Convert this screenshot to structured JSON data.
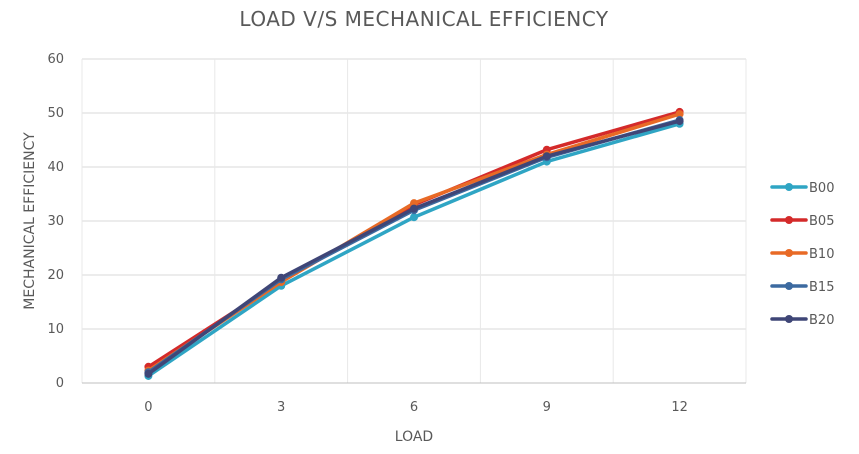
{
  "chart_data": {
    "type": "line",
    "title": "LOAD V/S MECHANICAL EFFICIENCY",
    "xlabel": "LOAD",
    "ylabel": "MECHANICAL EFFICIENCY",
    "categories": [
      "0",
      "3",
      "6",
      "9",
      "12"
    ],
    "ylim": [
      0,
      60
    ],
    "yticks": [
      0,
      10,
      20,
      30,
      40,
      50,
      60
    ],
    "grid": true,
    "legend_position": "right",
    "series": [
      {
        "name": "B00",
        "color": "#2fa5c4",
        "values": [
          1.3,
          18.0,
          30.7,
          41.0,
          48.0
        ]
      },
      {
        "name": "B05",
        "color": "#d42a2a",
        "values": [
          3.0,
          18.8,
          33.0,
          43.2,
          50.2
        ]
      },
      {
        "name": "B10",
        "color": "#e86a26",
        "values": [
          2.3,
          18.7,
          33.3,
          42.3,
          49.8
        ]
      },
      {
        "name": "B15",
        "color": "#3c6aa0",
        "values": [
          2.0,
          19.2,
          32.0,
          41.8,
          48.7
        ]
      },
      {
        "name": "B20",
        "color": "#3f4677",
        "values": [
          1.7,
          19.5,
          32.3,
          42.0,
          48.5
        ]
      }
    ]
  }
}
